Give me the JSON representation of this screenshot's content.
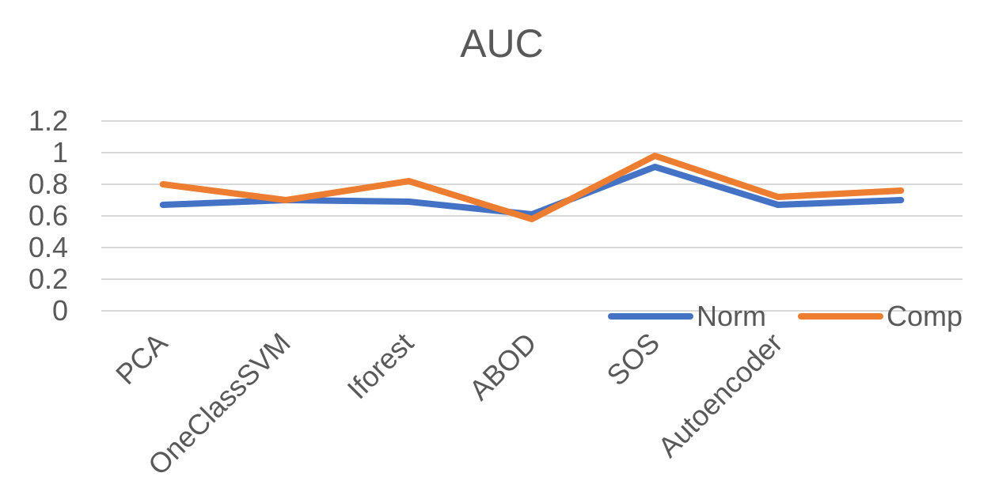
{
  "chart_data": {
    "type": "line",
    "title": "AUC",
    "categories": [
      "PCA",
      "OneClassSVM",
      "Iforest",
      "ABOD",
      "SOS",
      "Autoencoder",
      ""
    ],
    "series": [
      {
        "name": "Norm",
        "color": "#4472C4",
        "values": [
          0.67,
          0.7,
          0.69,
          0.61,
          0.91,
          0.67,
          0.7
        ]
      },
      {
        "name": "Comp",
        "color": "#ED7D31",
        "values": [
          0.8,
          0.7,
          0.82,
          0.58,
          0.98,
          0.72,
          0.76
        ]
      }
    ],
    "ylim": [
      0,
      1.2
    ],
    "y_ticks": [
      "0",
      "0.2",
      "0.4",
      "0.6",
      "0.8",
      "1",
      "1.2"
    ],
    "grid": true,
    "legend_position": "bottom-right",
    "gridline_color": "#d9d9d9"
  }
}
